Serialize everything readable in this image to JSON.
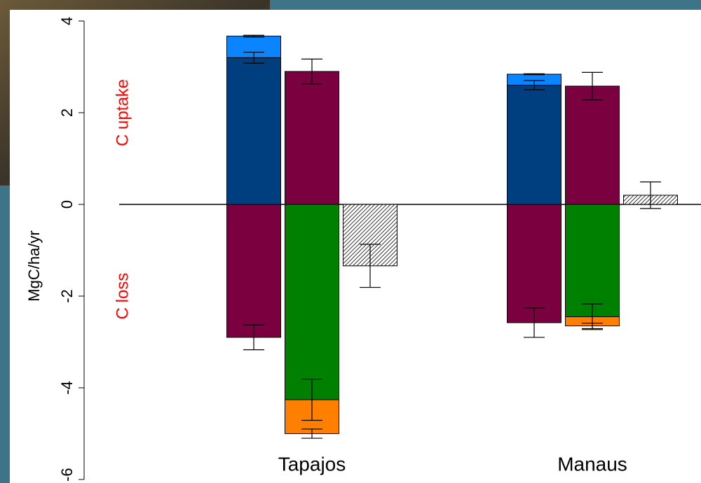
{
  "chart_data": {
    "type": "bar",
    "y_label": "MgC/ha/yr",
    "annotations": [
      {
        "text": "C uptake",
        "y": 2,
        "color": "#ff0000"
      },
      {
        "text": "C loss",
        "y": -2,
        "color": "#ff0000"
      }
    ],
    "categories": [
      "Tapajos",
      "Manaus"
    ],
    "ylim": [
      -6,
      4
    ],
    "yticks": [
      {
        "value": -6,
        "label": "-6"
      },
      -4,
      -2,
      0,
      2,
      4
    ],
    "series": [
      {
        "stack": 0,
        "color": "#003f7f",
        "values": [
          3.2,
          2.6
        ],
        "errors": [
          0.12,
          0.1
        ]
      },
      {
        "stack": 0,
        "color": "#0a84ff",
        "values": [
          0.47,
          0.24
        ],
        "errors": [
          0.02,
          0.01
        ]
      },
      {
        "stack": 0,
        "color": "#7a0040",
        "values": [
          -2.9,
          -2.58
        ],
        "errors": [
          0.27,
          0.32
        ]
      },
      {
        "stack": 1,
        "color": "#7a0040",
        "values": [
          2.9,
          2.58
        ],
        "errors": [
          0.27,
          0.3
        ]
      },
      {
        "stack": 1,
        "color": "#008000",
        "values": [
          -4.26,
          -2.45
        ],
        "errors": [
          0.45,
          0.28
        ]
      },
      {
        "stack": 1,
        "color": "#ff8000",
        "values": [
          -0.74,
          -0.2
        ],
        "errors": [
          0.1,
          0.06
        ]
      },
      {
        "stack": 2,
        "color": "#333333",
        "pattern": "hatch",
        "values": [
          -1.34,
          0.2
        ],
        "errors": [
          0.47,
          0.29
        ]
      }
    ]
  }
}
